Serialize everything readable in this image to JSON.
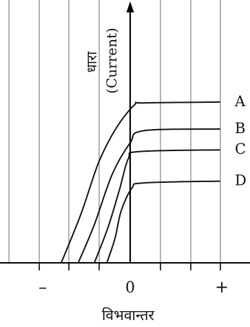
{
  "chart_data": {
    "type": "line",
    "title": "",
    "xlabel": "विभवान्तर",
    "ylabel_hindi": "धारा",
    "ylabel_english": "(Current)",
    "x_tick_labels": [
      "–",
      "0",
      "+"
    ],
    "xlim": [
      -1,
      1
    ],
    "ylim": [
      0,
      1
    ],
    "grid": true,
    "grid_direction": "vertical",
    "series": [
      {
        "name": "A",
        "points": [
          [
            -0.77,
            0
          ],
          [
            -0.55,
            0.28
          ],
          [
            -0.35,
            0.58
          ],
          [
            -0.15,
            0.78
          ],
          [
            0.05,
            0.91
          ],
          [
            0.15,
            0.92
          ],
          [
            1.0,
            0.925
          ]
        ]
      },
      {
        "name": "B",
        "points": [
          [
            -0.58,
            0
          ],
          [
            -0.4,
            0.22
          ],
          [
            -0.2,
            0.51
          ],
          [
            0.0,
            0.69
          ],
          [
            0.15,
            0.76
          ],
          [
            1.0,
            0.77
          ]
        ]
      },
      {
        "name": "C",
        "points": [
          [
            -0.4,
            0
          ],
          [
            -0.25,
            0.2
          ],
          [
            -0.12,
            0.42
          ],
          [
            -0.02,
            0.6
          ],
          [
            0.1,
            0.64
          ],
          [
            1.0,
            0.65
          ]
        ]
      },
      {
        "name": "D",
        "points": [
          [
            -0.26,
            0
          ],
          [
            -0.17,
            0.14
          ],
          [
            -0.1,
            0.3
          ],
          [
            0.02,
            0.43
          ],
          [
            0.15,
            0.46
          ],
          [
            1.0,
            0.47
          ]
        ]
      }
    ]
  }
}
